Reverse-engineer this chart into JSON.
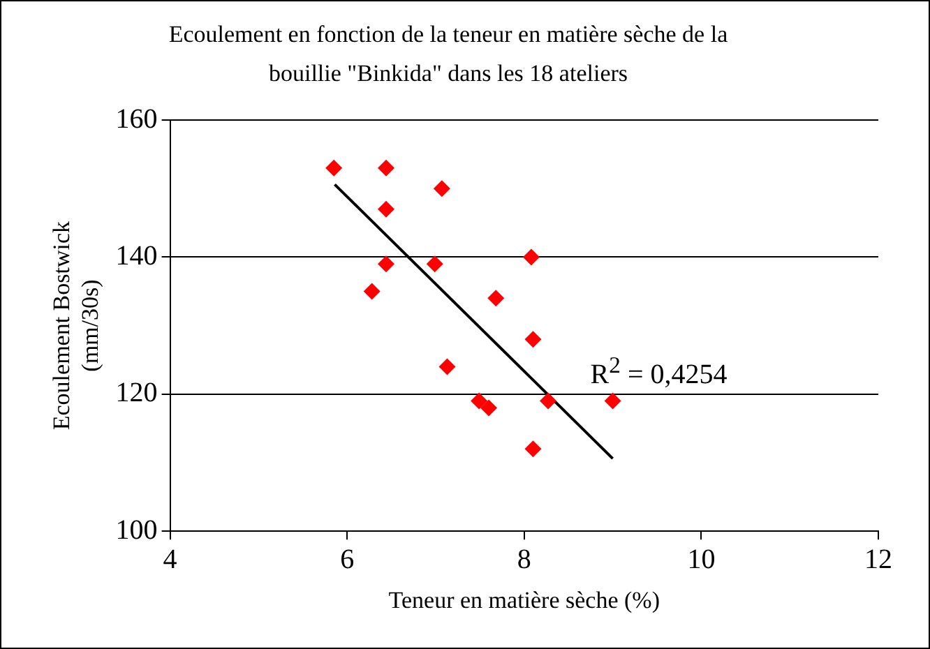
{
  "chart_data": {
    "type": "scatter",
    "title": "Ecoulement en fonction de la teneur en matière sèche de la bouillie \"Binkida\" dans les 18 ateliers",
    "xlabel": "Teneur en matière sèche (%)",
    "ylabel": "Ecoulement Bostwick (mm/30s)",
    "xlim": [
      4,
      12
    ],
    "xticks": [
      4,
      6,
      8,
      10,
      12
    ],
    "ylim": [
      100,
      160
    ],
    "yticks": [
      100,
      120,
      140,
      160
    ],
    "grid": "y",
    "legend": false,
    "series": [
      {
        "type": "scatter",
        "marker": "diamond",
        "color": "#ff0000",
        "x": [
          5.85,
          6.44,
          6.44,
          7.07,
          6.44,
          6.28,
          6.99,
          8.08,
          7.68,
          7.13,
          8.1,
          7.49,
          7.6,
          8.27,
          9.0,
          8.1
        ],
        "values": [
          153,
          153,
          147,
          150,
          139,
          135,
          139,
          140,
          134,
          124,
          128,
          119,
          118,
          119,
          119,
          112
        ]
      },
      {
        "type": "line",
        "marker": "none",
        "color": "#000000",
        "x": [
          5.86,
          9.0
        ],
        "values": [
          150.6,
          110.6
        ]
      }
    ],
    "annotations": [
      "R$^{2}$ = 0,4254"
    ]
  }
}
